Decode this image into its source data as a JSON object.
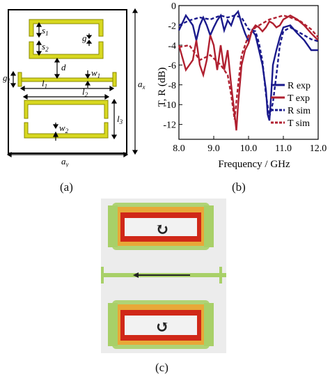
{
  "panel_a": {
    "caption": "(a)",
    "labels": {
      "s1": "s",
      "s1_sub": "1",
      "s2": "s",
      "s2_sub": "2",
      "g": "g",
      "d": "d",
      "w1": "w",
      "w1_sub": "1",
      "g1": "g",
      "g1_sub": "1",
      "l1": "l",
      "l1_sub": "1",
      "l2": "l",
      "l2_sub": "2",
      "l3": "l",
      "l3_sub": "3",
      "w2": "w",
      "w2_sub": "2",
      "ax": "a",
      "ax_sub": "x",
      "ay": "a",
      "ay_sub": "y"
    },
    "colors": {
      "metal": "#d8d820",
      "metal_edge": "#8a8a00",
      "frame": "#000000"
    }
  },
  "panel_b": {
    "caption": "(b)",
    "chart_data": {
      "type": "line",
      "xlabel": "Frequency / GHz",
      "ylabel": "T, R (dB)",
      "xlim": [
        8.0,
        12.0
      ],
      "ylim": [
        -13.5,
        0
      ],
      "xticks": [
        "8.0",
        "9.0",
        "10.0",
        "11.0",
        "12.0"
      ],
      "yticks": [
        "0",
        "-2",
        "-4",
        "-6",
        "-8",
        "-10",
        "-12"
      ],
      "legend_position": "bottom-right",
      "series": [
        {
          "name": "R exp",
          "color": "#1a1a8c",
          "dash": "solid",
          "x": [
            8.0,
            8.2,
            8.4,
            8.5,
            8.6,
            8.7,
            8.8,
            8.9,
            9.0,
            9.1,
            9.2,
            9.3,
            9.4,
            9.5,
            9.6,
            9.7,
            9.8,
            9.9,
            10.0,
            10.1,
            10.2,
            10.3,
            10.4,
            10.5,
            10.55,
            10.6,
            10.65,
            10.7,
            10.8,
            10.9,
            11.0,
            11.2,
            11.4,
            11.6,
            11.8,
            12.0
          ],
          "y": [
            -2.5,
            -1.0,
            -2.0,
            -3.5,
            -2.0,
            -1.2,
            -2.0,
            -3.0,
            -2.2,
            -1.5,
            -1.0,
            -2.5,
            -1.5,
            -2.0,
            -1.0,
            -0.6,
            -1.8,
            -2.8,
            -3.6,
            -2.5,
            -3.0,
            -4.5,
            -6.0,
            -8.5,
            -11.0,
            -11.6,
            -9.0,
            -6.0,
            -4.5,
            -3.2,
            -2.2,
            -2.0,
            -2.8,
            -3.5,
            -4.5,
            -4.5
          ]
        },
        {
          "name": "T exp",
          "color": "#b02030",
          "dash": "solid",
          "x": [
            8.0,
            8.2,
            8.4,
            8.5,
            8.6,
            8.7,
            8.8,
            8.9,
            9.0,
            9.1,
            9.2,
            9.3,
            9.4,
            9.5,
            9.6,
            9.65,
            9.7,
            9.8,
            9.9,
            10.0,
            10.1,
            10.2,
            10.3,
            10.4,
            10.5,
            10.6,
            10.7,
            10.8,
            10.9,
            11.0,
            11.2,
            11.4,
            11.6,
            11.8,
            12.0
          ],
          "y": [
            -4.0,
            -6.5,
            -5.5,
            -3.5,
            -6.0,
            -7.0,
            -5.5,
            -3.0,
            -4.0,
            -6.5,
            -4.0,
            -6.5,
            -4.5,
            -8.0,
            -11.0,
            -12.6,
            -10.0,
            -6.0,
            -4.5,
            -3.8,
            -2.5,
            -2.0,
            -2.2,
            -2.6,
            -2.2,
            -1.6,
            -1.8,
            -2.2,
            -2.0,
            -1.4,
            -1.0,
            -1.4,
            -2.0,
            -2.8,
            -3.5
          ]
        },
        {
          "name": "R sim",
          "color": "#1a1a8c",
          "dash": "dash",
          "x": [
            8.0,
            8.3,
            8.6,
            8.9,
            9.2,
            9.4,
            9.6,
            9.8,
            10.0,
            10.2,
            10.3,
            10.4,
            10.5,
            10.6,
            10.7,
            10.8,
            10.9,
            11.0,
            11.2,
            11.5,
            11.8,
            12.0
          ],
          "y": [
            -2.0,
            -1.5,
            -1.2,
            -1.4,
            -1.0,
            -1.2,
            -1.0,
            -1.2,
            -2.4,
            -2.6,
            -3.8,
            -5.6,
            -9.0,
            -11.2,
            -9.8,
            -7.0,
            -4.0,
            -2.6,
            -2.2,
            -2.8,
            -3.4,
            -3.6
          ]
        },
        {
          "name": "T sim",
          "color": "#b02030",
          "dash": "dash",
          "x": [
            8.0,
            8.3,
            8.6,
            8.9,
            9.2,
            9.4,
            9.5,
            9.6,
            9.7,
            9.8,
            10.0,
            10.2,
            10.4,
            10.6,
            10.8,
            11.0,
            11.2,
            11.5,
            11.8,
            12.0
          ],
          "y": [
            -4.2,
            -4.0,
            -5.5,
            -5.0,
            -6.0,
            -7.0,
            -9.0,
            -11.5,
            -8.0,
            -5.0,
            -3.0,
            -2.2,
            -1.8,
            -1.4,
            -1.2,
            -1.0,
            -1.2,
            -1.6,
            -2.4,
            -3.2
          ]
        }
      ]
    }
  },
  "panel_c": {
    "caption": "(c)",
    "colors": {
      "field_outer": "#a8d068",
      "field_mid": "#e0a030",
      "field_inner": "#d02818",
      "arrow": "#222222"
    }
  }
}
